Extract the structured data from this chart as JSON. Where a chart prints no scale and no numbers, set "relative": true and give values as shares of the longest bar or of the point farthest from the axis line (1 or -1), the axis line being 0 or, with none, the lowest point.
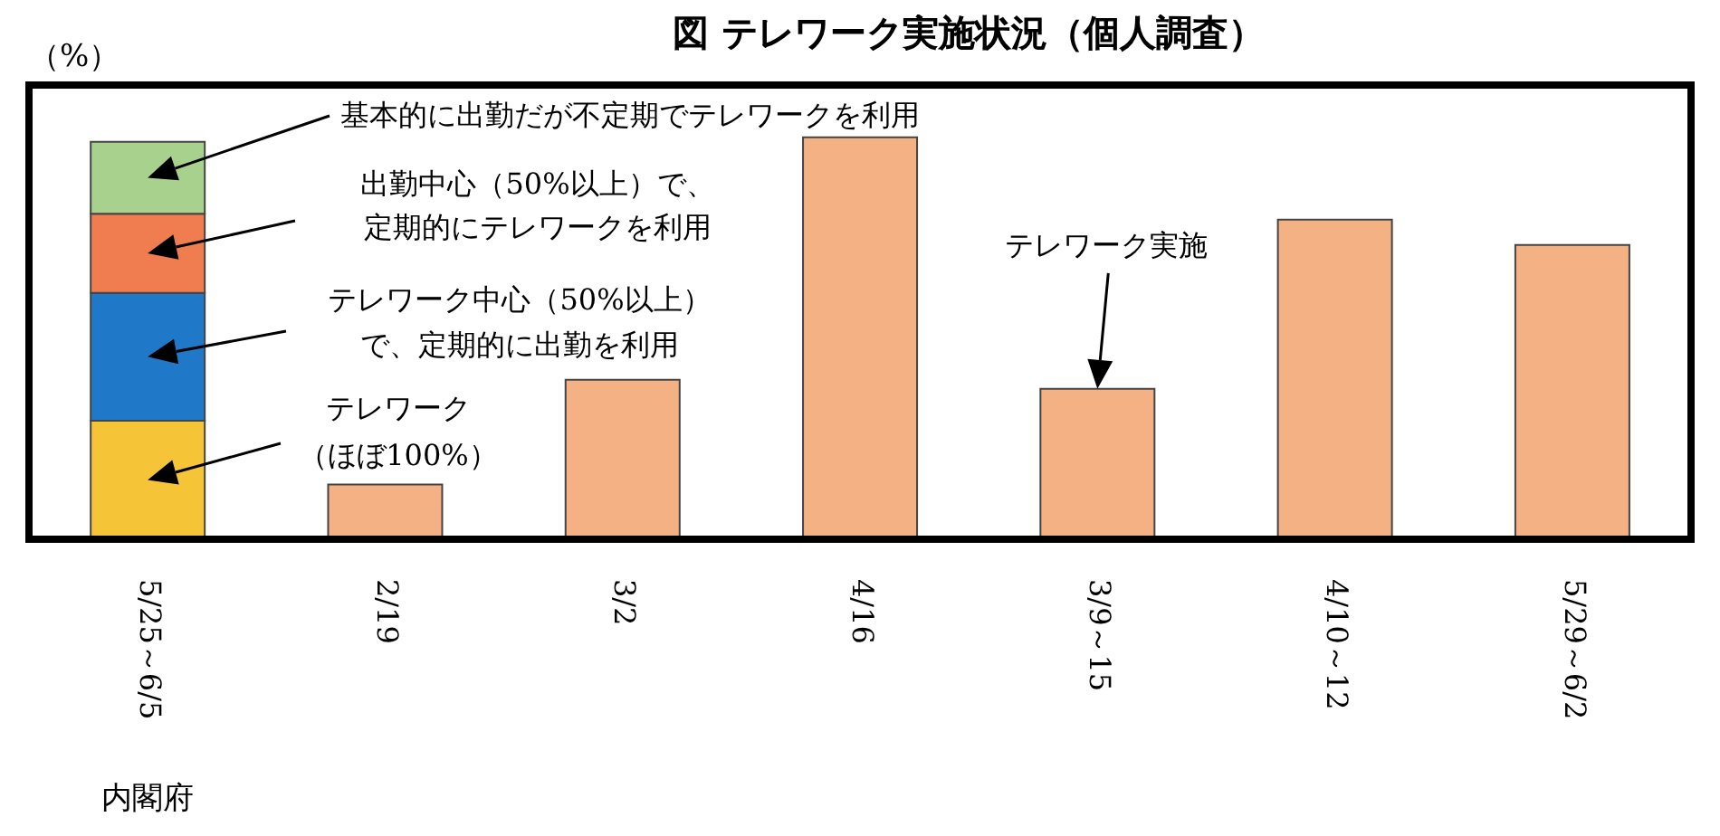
{
  "chart_data": {
    "type": "bar",
    "title": "図 テレワーク実施状況（個人調査）",
    "ylabel": "（%）",
    "relative": true,
    "stacked": true,
    "categories": [
      "5/25～6/5",
      "2/19",
      "3/2",
      "4/16",
      "3/9～15",
      "4/10～12",
      "5/29～6/2"
    ],
    "series": [
      {
        "name": "テレワーク（ほぼ100%）",
        "color": "#f5c437",
        "values": [
          0.295,
          null,
          null,
          null,
          null,
          null,
          null
        ]
      },
      {
        "name": "テレワーク中心（50%以上）で、定期的に出勤を利用",
        "color": "#1f78c8",
        "values": [
          0.318,
          null,
          null,
          null,
          null,
          null,
          null
        ]
      },
      {
        "name": "出勤中心（50%以上）で、定期的にテレワークを利用",
        "color": "#ef7d4f",
        "values": [
          0.197,
          null,
          null,
          null,
          null,
          null,
          null
        ]
      },
      {
        "name": "基本的に出勤だが不定期でテレワークを利用",
        "color": "#a9d18e",
        "values": [
          0.179,
          null,
          null,
          null,
          null,
          null,
          null
        ]
      },
      {
        "color": "#f4b183",
        "values": [
          null,
          0.136,
          0.397,
          1,
          0.374,
          0.795,
          0.732
        ]
      }
    ],
    "annotations": [
      "テレワーク実施",
      "内閣府"
    ]
  }
}
